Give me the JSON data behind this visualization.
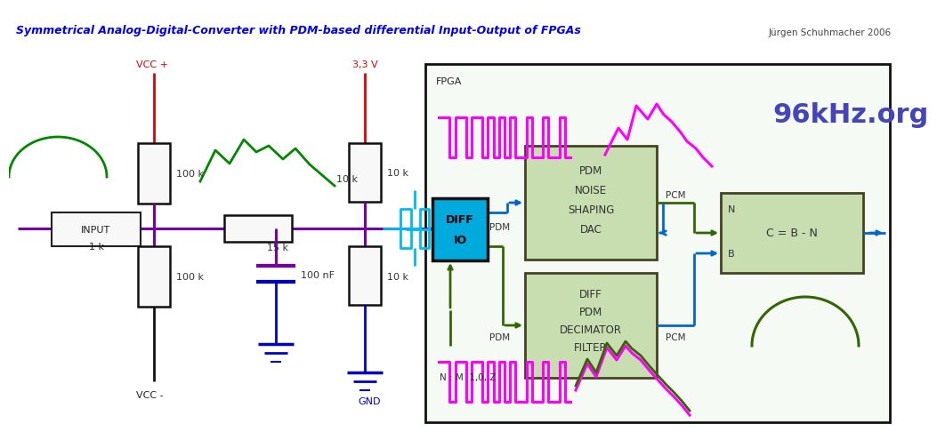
{
  "title": "Symmetrical Analog-Digital-Converter with PDM-based differential Input-Output of FPGAs",
  "author": "Jürgen Schuhmacher 2006",
  "title_color": "#0000EE",
  "author_color": "#444444",
  "bg_color": "#FFFFFF",
  "site96": "96kHz.org",
  "purple": "#7700aa",
  "green_sig": "#008800",
  "blue_cap": "#0000cc",
  "red_vcc": "#dd0000",
  "cyan_diff": "#00bbee",
  "magenta": "#ff00ff",
  "green_box": "#c8ddb0",
  "green_conn": "#336600",
  "blue_conn": "#0066cc",
  "black": "#111111"
}
